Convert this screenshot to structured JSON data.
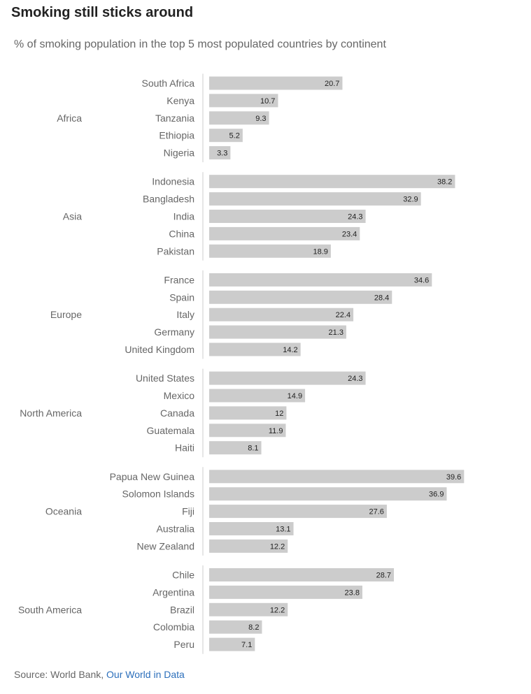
{
  "chart_data": {
    "type": "bar",
    "orientation": "horizontal",
    "title": "Smoking still sticks around",
    "subtitle": "% of smoking population in the top 5 most populated countries by continent",
    "groups": [
      {
        "name": "Africa",
        "categories": [
          "South Africa",
          "Kenya",
          "Tanzania",
          "Ethiopia",
          "Nigeria"
        ],
        "values": [
          20.7,
          10.7,
          9.3,
          5.2,
          3.3
        ]
      },
      {
        "name": "Asia",
        "categories": [
          "Indonesia",
          "Bangladesh",
          "India",
          "China",
          "Pakistan"
        ],
        "values": [
          38.2,
          32.9,
          24.3,
          23.4,
          18.9
        ]
      },
      {
        "name": "Europe",
        "categories": [
          "France",
          "Spain",
          "Italy",
          "Germany",
          "United Kingdom"
        ],
        "values": [
          34.6,
          28.4,
          22.4,
          21.3,
          14.2
        ]
      },
      {
        "name": "North America",
        "categories": [
          "United States",
          "Mexico",
          "Canada",
          "Guatemala",
          "Haiti"
        ],
        "values": [
          24.3,
          14.9,
          12,
          11.9,
          8.1
        ]
      },
      {
        "name": "Oceania",
        "categories": [
          "Papua New Guinea",
          "Solomon Islands",
          "Fiji",
          "Australia",
          "New Zealand"
        ],
        "values": [
          39.6,
          36.9,
          27.6,
          13.1,
          12.2
        ]
      },
      {
        "name": "South America",
        "categories": [
          "Chile",
          "Argentina",
          "Brazil",
          "Colombia",
          "Peru"
        ],
        "values": [
          28.7,
          23.8,
          12.2,
          8.2,
          7.1
        ]
      }
    ],
    "xlim": [
      0,
      40
    ],
    "grid": false,
    "bar_color": "#cccccc",
    "label_color": "#666666",
    "value_label_color": "#222222"
  },
  "source": {
    "prefix": "Source: World Bank,",
    "link_text": "Our World in Data",
    "link_color": "#2c6fbb"
  }
}
